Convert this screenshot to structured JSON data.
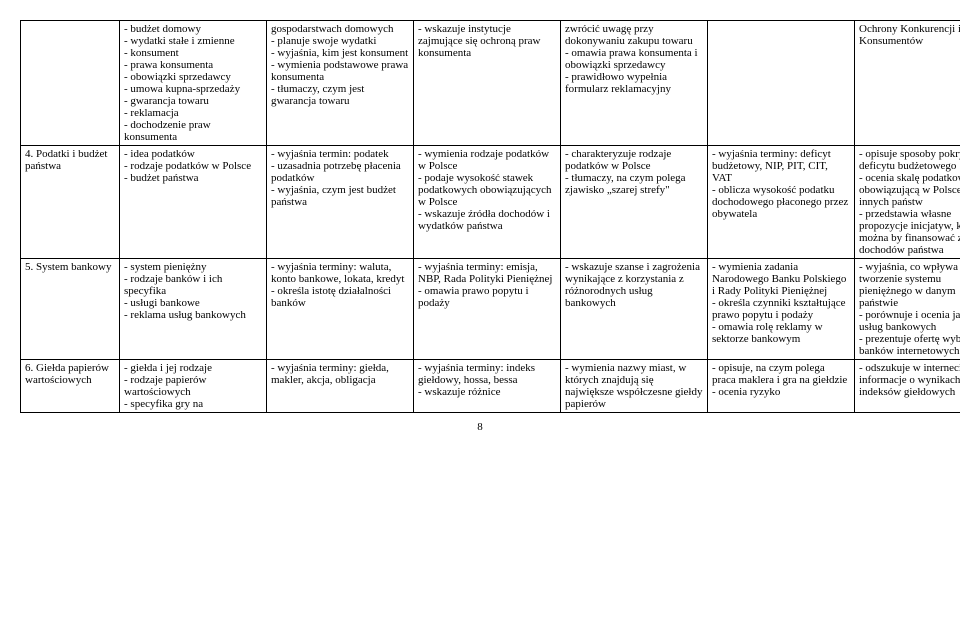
{
  "page_number": "8",
  "rows": [
    {
      "c0": "",
      "c1": "- budżet domowy\n- wydatki stałe i zmienne\n- konsument\n- prawa konsumenta\n- obowiązki sprzedawcy\n- umowa kupna-sprzedaży\n- gwarancja towaru\n- reklamacja\n- dochodzenie praw konsumenta",
      "c2": "gospodarstwach domowych\n- planuje swoje wydatki\n- wyjaśnia, kim jest konsument\n- wymienia podstawowe prawa konsumenta\n- tłumaczy, czym jest gwarancja towaru",
      "c3": "- wskazuje instytucje zajmujące się ochroną praw konsumenta",
      "c4": "zwrócić uwagę przy dokonywaniu zakupu towaru\n- omawia prawa konsumenta i obowiązki sprzedawcy\n- prawidłowo wypełnia formularz reklamacyjny",
      "c5": "",
      "c6": "Ochrony Konkurencji i Konsumentów"
    },
    {
      "c0": "4. Podatki i budżet państwa",
      "c1": "- idea podatków\n- rodzaje podatków w Polsce\n- budżet państwa",
      "c2": "- wyjaśnia termin: podatek\n- uzasadnia potrzebę płacenia podatków\n- wyjaśnia, czym jest budżet państwa",
      "c3": "- wymienia rodzaje podatków w Polsce\n- podaje wysokość stawek podatkowych obowiązujących w Polsce\n- wskazuje źródła dochodów i wydatków państwa",
      "c4": "- charakteryzuje rodzaje podatków w Polsce\n- tłumaczy, na czym polega zjawisko „szarej strefy\"",
      "c5": "- wyjaśnia terminy: deficyt budżetowy, NIP, PIT, CIT, VAT\n- oblicza wysokość podatku dochodowego płaconego przez obywatela",
      "c6": "- opisuje sposoby pokrywania deficytu budżetowego\n- ocenia skalę podatkową obowiązującą w Polsce na tle innych państw\n- przedstawia własne propozycje inicjatyw, które można by finansować z dochodów państwa"
    },
    {
      "c0": "5. System bankowy",
      "c1": "- system pieniężny\n- rodzaje banków i ich specyfika\n- usługi bankowe\n- reklama usług bankowych",
      "c2": "- wyjaśnia terminy: waluta, konto bankowe, lokata, kredyt\n- określa istotę działalności banków",
      "c3": "- wyjaśnia terminy: emisja, NBP, Rada Polityki Pieniężnej\n- omawia prawo popytu i podaży",
      "c4": "- wskazuje szanse i zagrożenia wynikające z korzystania z różnorodnych usług bankowych",
      "c5": "- wymienia zadania Narodowego Banku Polskiego i Rady Polityki Pieniężnej\n- określa czynniki kształtujące prawo popytu i podaży\n- omawia rolę reklamy w sektorze bankowym",
      "c6": "- wyjaśnia, co wpływa na tworzenie systemu pieniężnego w danym państwie\n- porównuje i ocenia jakość usług bankowych\n- prezentuje ofertę wybranych banków internetowych"
    },
    {
      "c0": "6. Giełda papierów wartościowych",
      "c1": "- giełda i jej rodzaje\n- rodzaje papierów wartościowych\n- specyfika gry na",
      "c2": "- wyjaśnia terminy: giełda, makler, akcja, obligacja",
      "c3": "- wyjaśnia terminy: indeks giełdowy, hossa, bessa\n- wskazuje różnice",
      "c4": "- wymienia nazwy miast, w których znajdują się największe współczesne giełdy papierów",
      "c5": "- opisuje, na czym polega praca maklera i gra na giełdzie\n- ocenia ryzyko",
      "c6": "- odszukuje w internecie informacje o wynikach indeksów giełdowych"
    }
  ]
}
